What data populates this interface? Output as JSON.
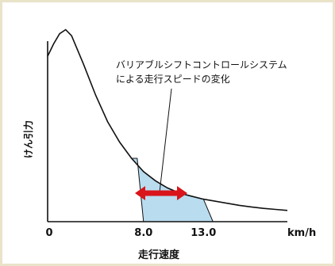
{
  "colors": {
    "curve": "#111111",
    "axis": "#111111",
    "range_fill": "#b9dcef",
    "arrow": "#d9141b",
    "frame": "#e9e3c9"
  },
  "chart_data": {
    "type": "line",
    "title": "",
    "xlabel": "走行速度",
    "ylabel": "けん引力",
    "x_unit": "km/h",
    "xlim": [
      0,
      20
    ],
    "ylim": [
      0,
      1
    ],
    "x_ticks": [
      {
        "value": 0,
        "label": "0"
      },
      {
        "value": 8.0,
        "label": "8.0"
      },
      {
        "value": 13.0,
        "label": "13.0"
      }
    ],
    "grid": false,
    "series": [
      {
        "x": [
          0,
          0.5,
          1.0,
          1.5,
          2.0,
          3.0,
          4.0,
          5.0,
          6.0,
          7.0,
          8.0,
          9.0,
          10.0,
          11.0,
          12.0,
          13.0,
          14.0,
          15.0,
          16.0,
          17.0,
          18.0,
          19.0,
          20.0
        ],
        "values": [
          0.81,
          0.87,
          0.92,
          0.94,
          0.91,
          0.77,
          0.62,
          0.49,
          0.39,
          0.31,
          0.245,
          0.2,
          0.165,
          0.14,
          0.125,
          0.11,
          0.1,
          0.09,
          0.08,
          0.072,
          0.065,
          0.06,
          0.055
        ]
      }
    ],
    "shaded_region": {
      "x_start": 8.0,
      "x_end": 13.0,
      "description_label": "バリアブルシフトコントロールシステム\nによる走行スピードの変化"
    },
    "annotation": {
      "line1": "バリアブルシフトコントロールシステム",
      "line2": "による走行スピードの変化"
    }
  }
}
